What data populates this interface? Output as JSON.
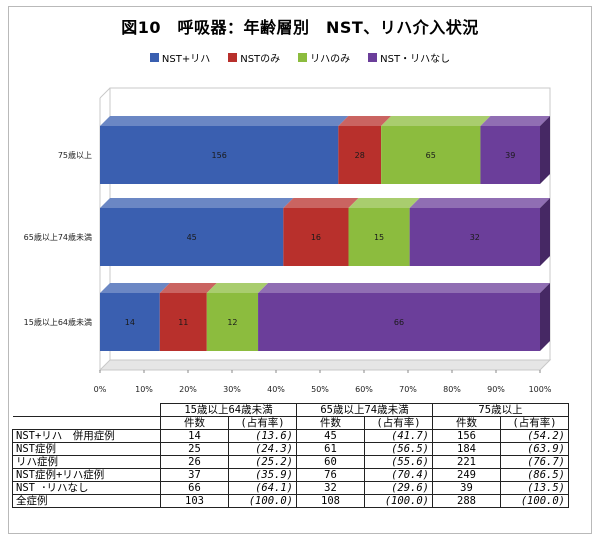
{
  "chart_data": {
    "type": "bar",
    "orientation": "horizontal",
    "stacked": "percent",
    "three_d": true,
    "title": "図10　呼吸器：年齢層別　NST、リハ介入状況",
    "categories": [
      "75歳以上",
      "65歳以上74歳未満",
      "15歳以上64歳未満"
    ],
    "series": [
      {
        "name": "NST+リハ",
        "color": "#3a5fb0",
        "values": [
          156,
          45,
          14
        ]
      },
      {
        "name": "NSTのみ",
        "color": "#b8302c",
        "values": [
          28,
          16,
          11
        ]
      },
      {
        "name": "リハのみ",
        "color": "#8cbc3e",
        "values": [
          65,
          15,
          12
        ]
      },
      {
        "name": "NST・リハなし",
        "color": "#6b3e9a",
        "values": [
          39,
          32,
          66
        ]
      }
    ],
    "x_ticks": [
      "0%",
      "10%",
      "20%",
      "30%",
      "40%",
      "50%",
      "60%",
      "70%",
      "80%",
      "90%",
      "100%"
    ],
    "xlim": [
      0,
      100
    ],
    "legend_position": "top",
    "grid": false
  },
  "table": {
    "groups": [
      "15歳以上64歳未満",
      "65歳以上74歳未満",
      "75歳以上"
    ],
    "subheaders": [
      "件数",
      "(占有率)"
    ],
    "rows": [
      {
        "label": "NST+リハ　併用症例",
        "values": [
          [
            "14",
            "(13.6)"
          ],
          [
            "45",
            "(41.7)"
          ],
          [
            "156",
            "(54.2)"
          ]
        ]
      },
      {
        "label": "NST症例",
        "values": [
          [
            "25",
            "(24.3)"
          ],
          [
            "61",
            "(56.5)"
          ],
          [
            "184",
            "(63.9)"
          ]
        ]
      },
      {
        "label": "リハ症例",
        "values": [
          [
            "26",
            "(25.2)"
          ],
          [
            "60",
            "(55.6)"
          ],
          [
            "221",
            "(76.7)"
          ]
        ]
      },
      {
        "label": "NST症例+リハ症例",
        "values": [
          [
            "37",
            "(35.9)"
          ],
          [
            "76",
            "(70.4)"
          ],
          [
            "249",
            "(86.5)"
          ]
        ]
      },
      {
        "label": "NST ･リハなし",
        "values": [
          [
            "66",
            "(64.1)"
          ],
          [
            "32",
            "(29.6)"
          ],
          [
            "39",
            "(13.5)"
          ]
        ]
      },
      {
        "label": "全症例",
        "values": [
          [
            "103",
            "(100.0)"
          ],
          [
            "108",
            "(100.0)"
          ],
          [
            "288",
            "(100.0)"
          ]
        ]
      }
    ]
  }
}
